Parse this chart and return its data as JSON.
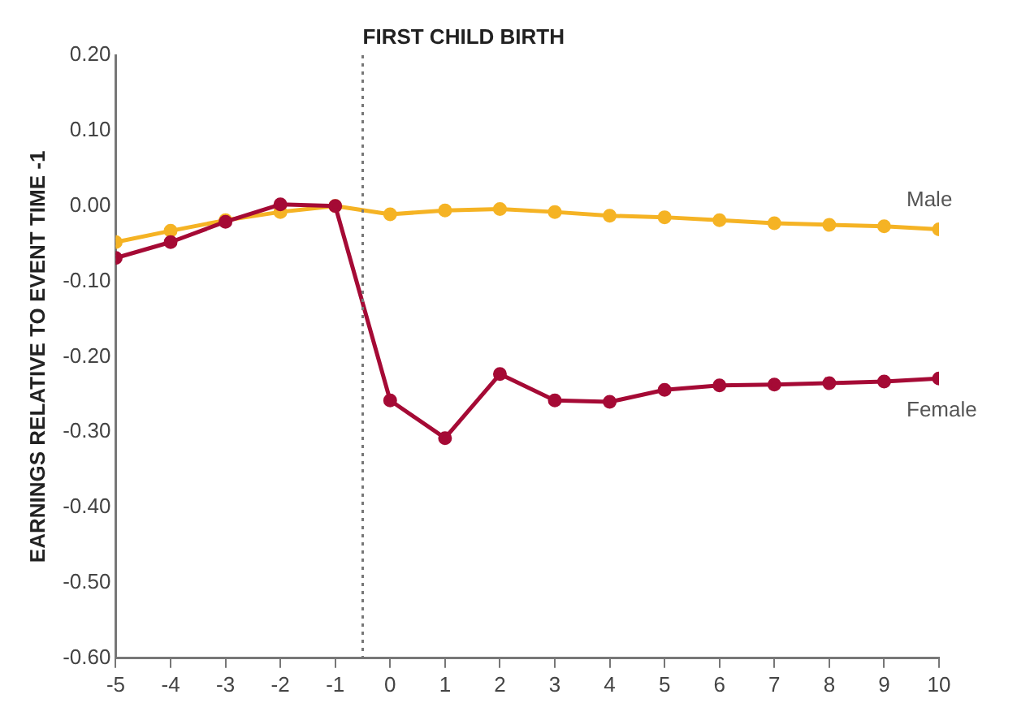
{
  "chart_data": {
    "type": "line",
    "ylabel": "EARNINGS RELATIVE TO EVENT TIME -1",
    "x": [
      -5,
      -4,
      -3,
      -2,
      -1,
      0,
      1,
      2,
      3,
      4,
      5,
      6,
      7,
      8,
      9,
      10
    ],
    "series": [
      {
        "name": "Male",
        "color": "#f5b324",
        "values": [
          -0.048,
          -0.033,
          -0.019,
          -0.008,
          0,
          -0.011,
          -0.006,
          -0.004,
          -0.008,
          -0.013,
          -0.015,
          -0.019,
          -0.023,
          -0.025,
          -0.027,
          -0.031
        ]
      },
      {
        "name": "Female",
        "color": "#a50a35",
        "values": [
          -0.069,
          -0.048,
          -0.021,
          0.002,
          0,
          -0.258,
          -0.308,
          -0.223,
          -0.258,
          -0.26,
          -0.244,
          -0.238,
          -0.237,
          -0.235,
          -0.233,
          -0.229
        ]
      }
    ],
    "xlim": [
      -5,
      10
    ],
    "xticks": [
      -5,
      -4,
      -3,
      -2,
      -1,
      0,
      1,
      2,
      3,
      4,
      5,
      6,
      7,
      8,
      9,
      10
    ],
    "ylim": [
      -0.6,
      0.2
    ],
    "yticks": [
      {
        "value": -0.6,
        "label": "-0.60"
      },
      {
        "value": -0.5,
        "label": "-0.50"
      },
      {
        "value": -0.4,
        "label": "-0.40"
      },
      {
        "value": -0.3,
        "label": "-0.30"
      },
      {
        "value": -0.2,
        "label": "-0.20"
      },
      {
        "value": -0.1,
        "label": "-0.10"
      },
      {
        "value": 0,
        "label": "0.00"
      },
      {
        "value": 0.1,
        "label": "0.10"
      },
      {
        "value": 0.2,
        "label": "0.20"
      }
    ],
    "ref_lines": [
      {
        "axis": "x",
        "value": -0.5,
        "label": "FIRST CHILD BIRTH",
        "color": "#777777",
        "line_style": "dotted"
      }
    ],
    "marker": "circle",
    "line_style": "solid",
    "grid": false,
    "legend": false
  }
}
